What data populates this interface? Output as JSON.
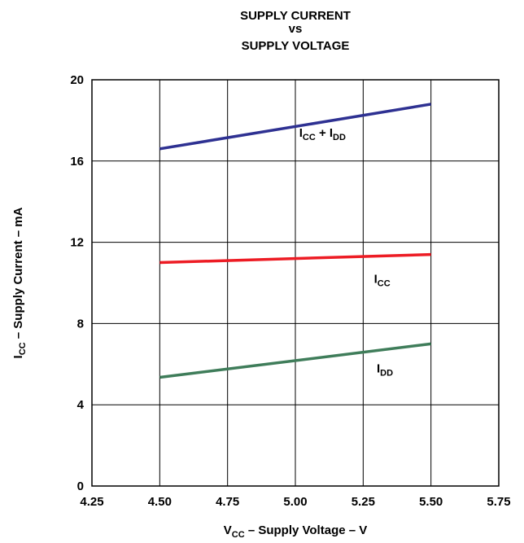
{
  "chart_data": {
    "type": "line",
    "title": [
      "SUPPLY CURRENT",
      "vs",
      "SUPPLY VOLTAGE"
    ],
    "xlabel": {
      "main": "V",
      "sub": "CC",
      "rest": " – Supply Voltage – V"
    },
    "ylabel": {
      "main": "I",
      "sub": "CC",
      "rest": " – Supply Current – mA"
    },
    "xlim": [
      4.25,
      5.75
    ],
    "ylim": [
      0,
      20
    ],
    "xticks": [
      "4.25",
      "4.50",
      "4.75",
      "5.00",
      "5.25",
      "5.50",
      "5.75"
    ],
    "yticks": [
      "0",
      "4",
      "8",
      "12",
      "16",
      "20"
    ],
    "grid": true,
    "series": [
      {
        "label_parts": [
          {
            "t": "I",
            "sub": false
          },
          {
            "t": "CC",
            "sub": true
          },
          {
            "t": " + I",
            "sub": false
          },
          {
            "t": "DD",
            "sub": true
          }
        ],
        "label_at": [
          5.1,
          17.2
        ],
        "color": "#2e3192",
        "x": [
          4.5,
          5.5
        ],
        "y": [
          16.6,
          18.8
        ]
      },
      {
        "label_parts": [
          {
            "t": "I",
            "sub": false
          },
          {
            "t": "CC",
            "sub": true
          }
        ],
        "label_at": [
          5.32,
          10.0
        ],
        "color": "#ed1c24",
        "x": [
          4.5,
          5.5
        ],
        "y": [
          11.0,
          11.4
        ]
      },
      {
        "label_parts": [
          {
            "t": "I",
            "sub": false
          },
          {
            "t": "DD",
            "sub": true
          }
        ],
        "label_at": [
          5.33,
          5.6
        ],
        "color": "#3f7d5a",
        "x": [
          4.5,
          5.5
        ],
        "y": [
          5.35,
          7.0
        ]
      }
    ]
  }
}
